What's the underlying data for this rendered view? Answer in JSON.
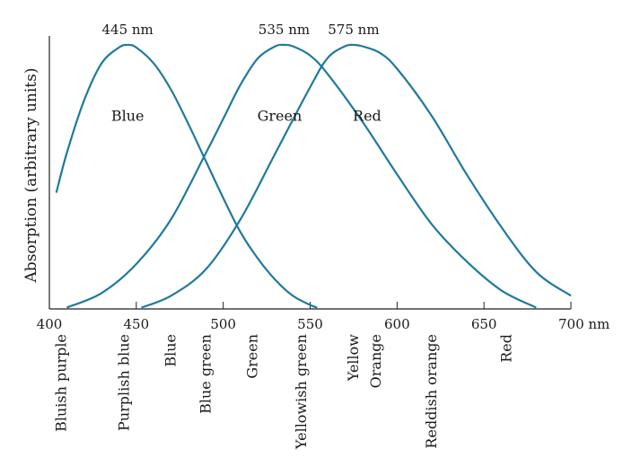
{
  "chart_data": {
    "type": "line",
    "title": "",
    "xlabel": "",
    "ylabel": "Absorption (arbitrary units)",
    "xlim": [
      400,
      700
    ],
    "ylim": [
      0,
      1
    ],
    "x_unit": "nm",
    "x_ticks": [
      400,
      450,
      500,
      550,
      600,
      650,
      700
    ],
    "grid": false,
    "series": [
      {
        "name": "Blue",
        "peak_label": "445 nm",
        "color": "#1f7a9c",
        "x": [
          404,
          410,
          420,
          430,
          440,
          445,
          450,
          460,
          470,
          480,
          490,
          500,
          510,
          520,
          530,
          540,
          550,
          554
        ],
        "y": [
          0.44,
          0.59,
          0.79,
          0.93,
          0.99,
          1.0,
          0.99,
          0.93,
          0.83,
          0.7,
          0.56,
          0.42,
          0.29,
          0.19,
          0.11,
          0.05,
          0.015,
          0.005
        ]
      },
      {
        "name": "Green",
        "peak_label": "535 nm",
        "color": "#1f7a9c",
        "x": [
          410,
          430,
          450,
          470,
          490,
          500,
          510,
          520,
          530,
          535,
          540,
          550,
          560,
          580,
          600,
          620,
          640,
          660,
          680
        ],
        "y": [
          0.005,
          0.06,
          0.17,
          0.34,
          0.59,
          0.72,
          0.85,
          0.95,
          0.995,
          1.0,
          0.995,
          0.96,
          0.89,
          0.71,
          0.51,
          0.32,
          0.18,
          0.07,
          0.005
        ]
      },
      {
        "name": "Red",
        "peak_label": "575 nm",
        "color": "#1f7a9c",
        "x": [
          453,
          470,
          490,
          510,
          530,
          550,
          560,
          570,
          575,
          580,
          590,
          600,
          620,
          640,
          660,
          680,
          700
        ],
        "y": [
          0.005,
          0.05,
          0.15,
          0.34,
          0.59,
          0.84,
          0.95,
          0.995,
          1.0,
          0.995,
          0.97,
          0.91,
          0.73,
          0.51,
          0.31,
          0.14,
          0.05
        ]
      }
    ],
    "color_names": [
      {
        "label": "Bluish purple",
        "x": 407
      },
      {
        "label": "Purplish blue",
        "x": 443
      },
      {
        "label": "Blue",
        "x": 470
      },
      {
        "label": "Blue green",
        "x": 490
      },
      {
        "label": "Green",
        "x": 517
      },
      {
        "label": "Yellowish green",
        "x": 545
      },
      {
        "label": "Yellow",
        "x": 575
      },
      {
        "label": "Orange",
        "x": 588
      },
      {
        "label": "Reddish orange",
        "x": 620
      },
      {
        "label": "Red",
        "x": 663
      }
    ]
  }
}
